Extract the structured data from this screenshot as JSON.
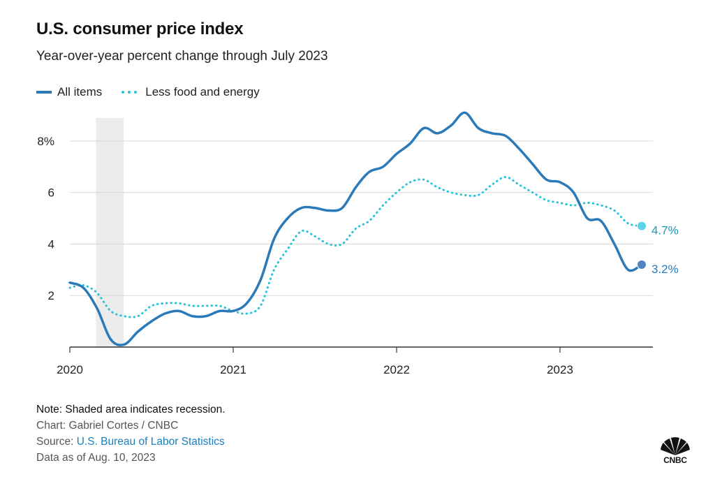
{
  "header": {
    "title": "U.S. consumer price index",
    "subtitle": "Year-over-year percent change through July 2023"
  },
  "colors": {
    "all_items": "#2a7ab9",
    "core": "#27c3d8",
    "recession": "#ececec",
    "grid": "#d9d9d9",
    "axis": "#333333",
    "label_all": "#2a7ab9",
    "label_core": "#1e96b8"
  },
  "chart_data": {
    "type": "line",
    "title": "U.S. consumer price index",
    "subtitle": "Year-over-year percent change through July 2023",
    "xlabel": "",
    "ylabel": "",
    "x_ticks": [
      "2020",
      "2021",
      "2022",
      "2023"
    ],
    "y_ticks": [
      "2",
      "4",
      "6",
      "8%"
    ],
    "y_tick_values": [
      2,
      4,
      6,
      8
    ],
    "ylim": [
      0,
      9
    ],
    "xlim": [
      2020.0,
      2023.7
    ],
    "grid": "horizontal",
    "legend_position": "top-left",
    "recession": {
      "start": 2020.16,
      "end": 2020.33
    },
    "series": [
      {
        "name": "All items",
        "style": "solid",
        "x": [
          2020.0,
          2020.083,
          2020.167,
          2020.25,
          2020.333,
          2020.417,
          2020.5,
          2020.583,
          2020.667,
          2020.75,
          2020.833,
          2020.917,
          2021.0,
          2021.083,
          2021.167,
          2021.25,
          2021.333,
          2021.417,
          2021.5,
          2021.583,
          2021.667,
          2021.75,
          2021.833,
          2021.917,
          2022.0,
          2022.083,
          2022.167,
          2022.25,
          2022.333,
          2022.417,
          2022.5,
          2022.583,
          2022.667,
          2022.75,
          2022.833,
          2022.917,
          2023.0,
          2023.083,
          2023.167,
          2023.25,
          2023.333,
          2023.417,
          2023.5
        ],
        "values": [
          2.5,
          2.3,
          1.5,
          0.3,
          0.1,
          0.6,
          1.0,
          1.3,
          1.4,
          1.2,
          1.2,
          1.4,
          1.4,
          1.7,
          2.6,
          4.2,
          5.0,
          5.4,
          5.4,
          5.3,
          5.4,
          6.2,
          6.8,
          7.0,
          7.5,
          7.9,
          8.5,
          8.3,
          8.6,
          9.1,
          8.5,
          8.3,
          8.2,
          7.7,
          7.1,
          6.5,
          6.4,
          6.0,
          5.0,
          4.9,
          4.0,
          3.0,
          3.2
        ]
      },
      {
        "name": "Less food and energy",
        "style": "dotted",
        "x": [
          2020.0,
          2020.083,
          2020.167,
          2020.25,
          2020.333,
          2020.417,
          2020.5,
          2020.583,
          2020.667,
          2020.75,
          2020.833,
          2020.917,
          2021.0,
          2021.083,
          2021.167,
          2021.25,
          2021.333,
          2021.417,
          2021.5,
          2021.583,
          2021.667,
          2021.75,
          2021.833,
          2021.917,
          2022.0,
          2022.083,
          2022.167,
          2022.25,
          2022.333,
          2022.417,
          2022.5,
          2022.583,
          2022.667,
          2022.75,
          2022.833,
          2022.917,
          2023.0,
          2023.083,
          2023.167,
          2023.25,
          2023.333,
          2023.417,
          2023.5
        ],
        "values": [
          2.3,
          2.4,
          2.1,
          1.4,
          1.2,
          1.2,
          1.6,
          1.7,
          1.7,
          1.6,
          1.6,
          1.6,
          1.4,
          1.3,
          1.6,
          3.0,
          3.8,
          4.5,
          4.3,
          4.0,
          4.0,
          4.6,
          4.9,
          5.5,
          6.0,
          6.4,
          6.5,
          6.2,
          6.0,
          5.9,
          5.9,
          6.3,
          6.6,
          6.3,
          6.0,
          5.7,
          5.6,
          5.5,
          5.6,
          5.5,
          5.3,
          4.8,
          4.7
        ]
      }
    ],
    "end_labels": {
      "all_items": "3.2%",
      "core": "4.7%"
    }
  },
  "notes": {
    "note": "Note: Shaded area indicates recession.",
    "credit": "Chart: Gabriel Cortes / CNBC",
    "source_prefix": "Source: ",
    "source_link": "U.S. Bureau of Labor Statistics",
    "data_as_of": "Data as of Aug. 10, 2023"
  },
  "logo": {
    "text": "CNBC"
  }
}
